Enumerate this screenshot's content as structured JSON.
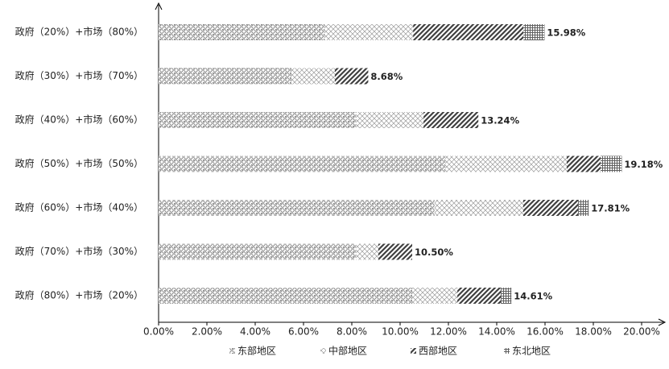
{
  "chart_data": {
    "type": "stacked-barh",
    "categories": [
      "政府（20%）+市场（80%）",
      "政府（30%）+市场（70%）",
      "政府（40%）+市场（60%）",
      "政府（50%）+市场（50%）",
      "政府（60%）+市场（40%）",
      "政府（70%）+市场（30%）",
      "政府（80%）+市场（20%）"
    ],
    "series": [
      {
        "name": "东部地区",
        "color": "#808080",
        "values": [
          6.87,
          5.5,
          8.17,
          11.87,
          11.43,
          8.17,
          10.5
        ]
      },
      {
        "name": "中部地区",
        "color": "#9a9a9a",
        "values": [
          3.67,
          1.8,
          2.8,
          5.03,
          3.67,
          0.93,
          1.87
        ]
      },
      {
        "name": "西部地区",
        "color": "#404040",
        "values": [
          4.57,
          1.38,
          2.27,
          1.4,
          2.27,
          1.4,
          1.8
        ]
      },
      {
        "name": "东北地区",
        "color": "#606060",
        "values": [
          0.87,
          0,
          0,
          0.88,
          0.44,
          0,
          0.44
        ]
      }
    ],
    "totals": [
      15.98,
      8.68,
      13.24,
      19.18,
      17.81,
      10.5,
      14.61
    ],
    "total_labels": [
      "15.98%",
      "8.68%",
      "13.24%",
      "19.18%",
      "17.81%",
      "10.50%",
      "14.61%"
    ],
    "xlim": [
      0,
      20
    ],
    "xticks": [
      {
        "value": 0,
        "label": "0.00%"
      },
      {
        "value": 2,
        "label": "2.00%"
      },
      {
        "value": 4,
        "label": "4.00%"
      },
      {
        "value": 6,
        "label": "6.00%"
      },
      {
        "value": 8,
        "label": "8.00%"
      },
      {
        "value": 10,
        "label": "10.00%"
      },
      {
        "value": 12,
        "label": "12.00%"
      },
      {
        "value": 14,
        "label": "14.00%"
      },
      {
        "value": 16,
        "label": "16.00%"
      },
      {
        "value": 18,
        "label": "18.00%"
      },
      {
        "value": 20,
        "label": "20.00%"
      }
    ],
    "legend": "bottom"
  }
}
